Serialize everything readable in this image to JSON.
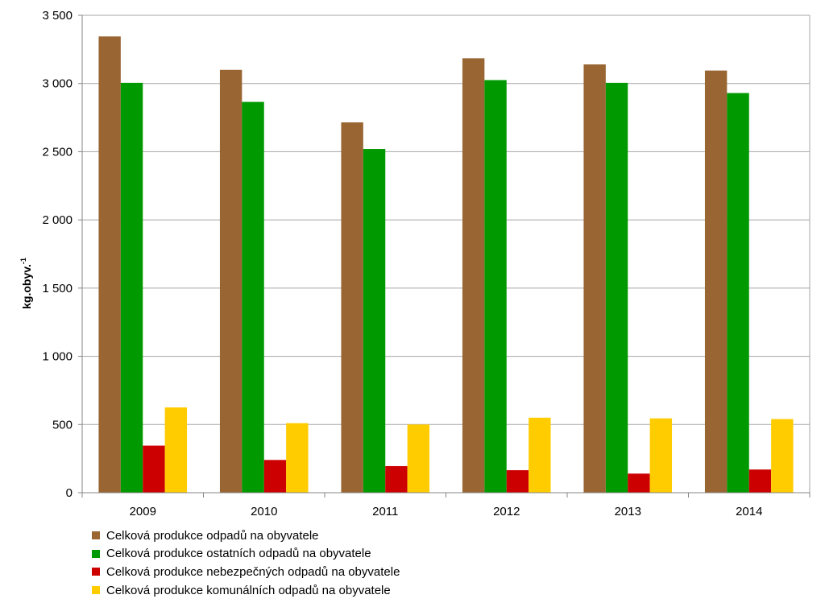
{
  "chart_data": {
    "type": "bar",
    "categories": [
      "2009",
      "2010",
      "2011",
      "2012",
      "2013",
      "2014"
    ],
    "series": [
      {
        "name": "Celková produkce odpadů na obyvatele",
        "color": "#996633",
        "values": [
          3345,
          3100,
          2715,
          3185,
          3140,
          3095
        ]
      },
      {
        "name": "Celková produkce ostatních odpadů na obyvatele",
        "color": "#009900",
        "values": [
          3005,
          2865,
          2520,
          3025,
          3005,
          2930
        ]
      },
      {
        "name": "Celková produkce nebezpečných odpadů na obyvatele",
        "color": "#cc0000",
        "values": [
          345,
          240,
          195,
          165,
          140,
          170
        ]
      },
      {
        "name": "Celková produkce komunálních odpadů na obyvatele",
        "color": "#ffcc00",
        "values": [
          625,
          510,
          500,
          550,
          545,
          540
        ]
      }
    ],
    "ylabel_main": "kg.obyv.",
    "ylabel_sup": "-1",
    "ylim": [
      0,
      3500
    ],
    "yticks": [
      0,
      500,
      1000,
      1500,
      2000,
      2500,
      3000,
      3500
    ],
    "ytick_labels": [
      "0",
      "500",
      "1 000",
      "1 500",
      "2 000",
      "2 500",
      "3 000",
      "3 500"
    ],
    "grid": true,
    "legend_position": "bottom-left"
  }
}
